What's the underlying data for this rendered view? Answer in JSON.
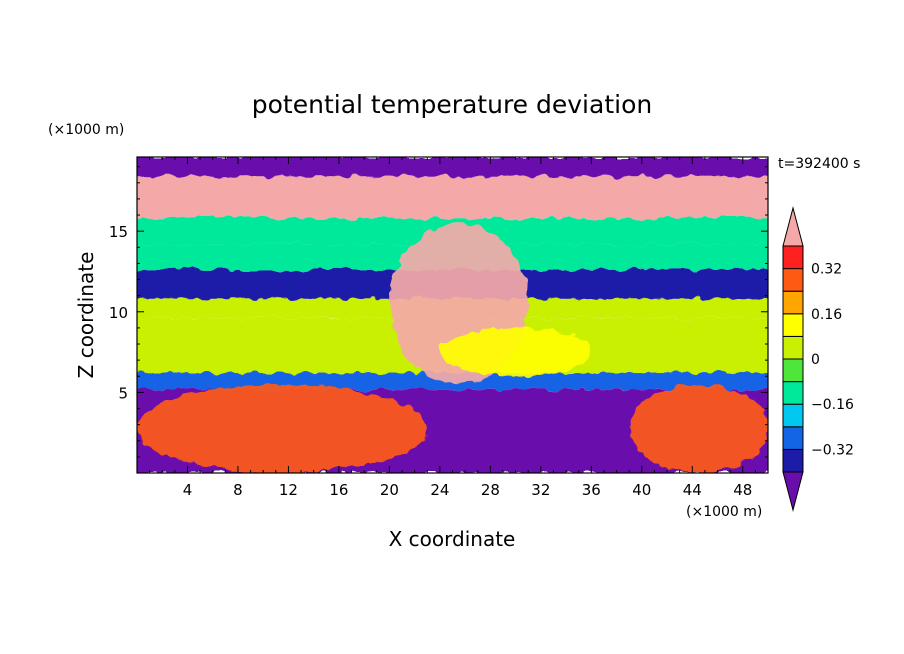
{
  "chart_data": {
    "type": "heatmap",
    "title": "potential temperature deviation",
    "xlabel": "X coordinate",
    "ylabel": "Z coordinate",
    "x_unit": "(×1000 m)",
    "z_unit": "(×1000 m)",
    "time_label": "t=392400 s",
    "xlim": [
      0,
      50
    ],
    "zlim": [
      0,
      19.6
    ],
    "x_ticks": [
      4,
      8,
      12,
      16,
      20,
      24,
      28,
      32,
      36,
      40,
      44,
      48
    ],
    "z_ticks": [
      5,
      10,
      15
    ],
    "colorbar": {
      "levels": [
        -0.4,
        -0.32,
        -0.24,
        -0.16,
        -0.08,
        0,
        0.08,
        0.16,
        0.24,
        0.32,
        0.4
      ],
      "tick_values": [
        -0.32,
        -0.16,
        0,
        0.16,
        0.32
      ],
      "tick_labels": [
        "−0.32",
        "−0.16",
        "0",
        "0.16",
        "0.32"
      ],
      "colors": [
        "#6a0dad",
        "#1c1ca8",
        "#1464e6",
        "#00c8f0",
        "#00e89a",
        "#4ee63a",
        "#c8f000",
        "#ffff00",
        "#ffa500",
        "#ff5a14",
        "#ff2020",
        "#f4a9a8"
      ],
      "extend": "both"
    },
    "field_layers": [
      {
        "z_range": [
          18.4,
          19.6
        ],
        "value": -0.45
      },
      {
        "z_range": [
          15.8,
          18.4
        ],
        "value": 0.45
      },
      {
        "z_range": [
          14.2,
          15.8
        ],
        "value": -0.1
      },
      {
        "z_range": [
          12.6,
          14.2
        ],
        "value": -0.12
      },
      {
        "z_range": [
          10.8,
          12.6
        ],
        "value": -0.4
      },
      {
        "z_range": [
          9.6,
          10.8
        ],
        "value": 0.05
      },
      {
        "z_range": [
          6.2,
          9.6
        ],
        "value": 0.03
      },
      {
        "z_range": [
          5.2,
          6.2
        ],
        "value": -0.3
      },
      {
        "z_range": [
          0,
          5.2
        ],
        "value": -0.45
      }
    ],
    "features": [
      {
        "name": "warm plume",
        "x_range": [
          20,
          31
        ],
        "z_range": [
          5.5,
          15.5
        ],
        "value": 0.45
      },
      {
        "name": "warm region left",
        "x_range": [
          0,
          23
        ],
        "z_range": [
          0,
          5.5
        ],
        "value": 0.25
      },
      {
        "name": "warm region right",
        "x_range": [
          39,
          50
        ],
        "z_range": [
          0,
          5.5
        ],
        "value": 0.3
      },
      {
        "name": "yellow core",
        "x_range": [
          24,
          36
        ],
        "z_range": [
          6,
          9
        ],
        "value": 0.14
      }
    ]
  }
}
